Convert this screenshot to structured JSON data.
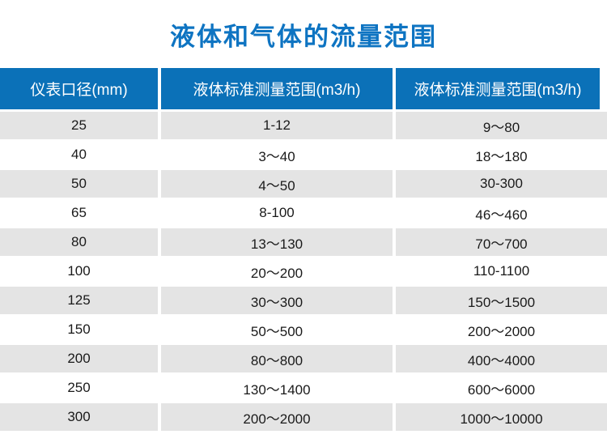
{
  "page": {
    "title": "液体和气体的流量范围"
  },
  "colors": {
    "title_blue": "#0e74c2",
    "header_bg": "#0b71b8",
    "header_text": "#ffffff",
    "row_alt_bg": "#e4e4e4",
    "row_bg": "#ffffff",
    "body_text": "#1a1a1a"
  },
  "chart_data": {
    "type": "table",
    "title": "液体和气体的流量范围",
    "columns": [
      "仪表口径(mm)",
      "液体标准测量范围(m3/h)",
      "液体标准测量范围(m3/h)"
    ],
    "rows": [
      [
        "25",
        "1-12",
        "9～80"
      ],
      [
        "40",
        "3～40",
        "18～180"
      ],
      [
        "50",
        "4～50",
        "30-300"
      ],
      [
        "65",
        "8-100",
        "46～460"
      ],
      [
        "80",
        "13～130",
        "70～700"
      ],
      [
        "100",
        "20～200",
        "110-1100"
      ],
      [
        "125",
        "30～300",
        "150～1500"
      ],
      [
        "150",
        "50～500",
        "200～2000"
      ],
      [
        "200",
        "80～800",
        "400～4000"
      ],
      [
        "250",
        "130～1400",
        "600～6000"
      ],
      [
        "300",
        "200～2000",
        "1000～10000"
      ]
    ]
  }
}
